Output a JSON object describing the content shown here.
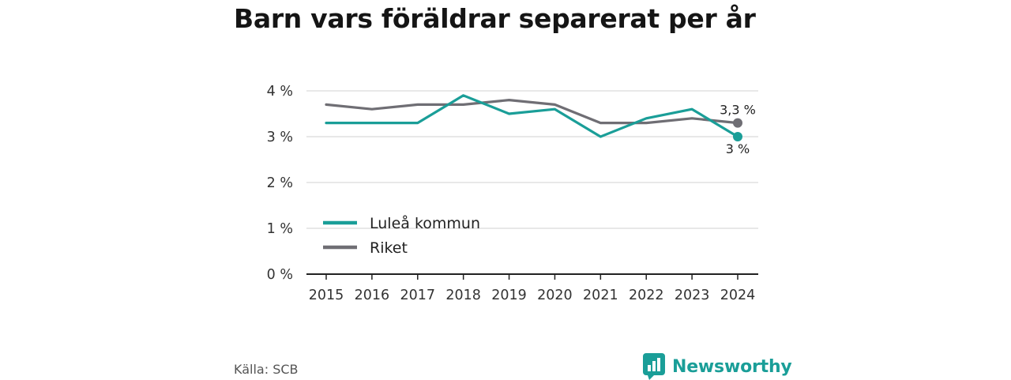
{
  "title": "Barn vars föräldrar separerat per år",
  "source": "Källa: SCB",
  "brand": {
    "name": "Newsworthy",
    "icon": "newsworthy-logo-icon",
    "color": "#1a9e98"
  },
  "chart_data": {
    "type": "line",
    "title": "Barn vars föräldrar separerat per år",
    "xlabel": "",
    "ylabel": "",
    "x": [
      "2015",
      "2016",
      "2017",
      "2018",
      "2019",
      "2020",
      "2021",
      "2022",
      "2023",
      "2024"
    ],
    "yticks": [
      0,
      1,
      2,
      3,
      4
    ],
    "ytick_labels": [
      "0 %",
      "1 %",
      "2 %",
      "3 %",
      "4 %"
    ],
    "ylim": [
      0,
      4.3
    ],
    "grid": true,
    "legend_position": "lower-left",
    "series": [
      {
        "name": "Luleå kommun",
        "color": "#1a9e98",
        "values": [
          3.3,
          3.3,
          3.3,
          3.9,
          3.5,
          3.6,
          3.0,
          3.4,
          3.6,
          3.0
        ],
        "end_label": "3 %"
      },
      {
        "name": "Riket",
        "color": "#6f6e74",
        "values": [
          3.7,
          3.6,
          3.7,
          3.7,
          3.8,
          3.7,
          3.3,
          3.3,
          3.4,
          3.3
        ],
        "end_label": "3,3 %"
      }
    ]
  }
}
